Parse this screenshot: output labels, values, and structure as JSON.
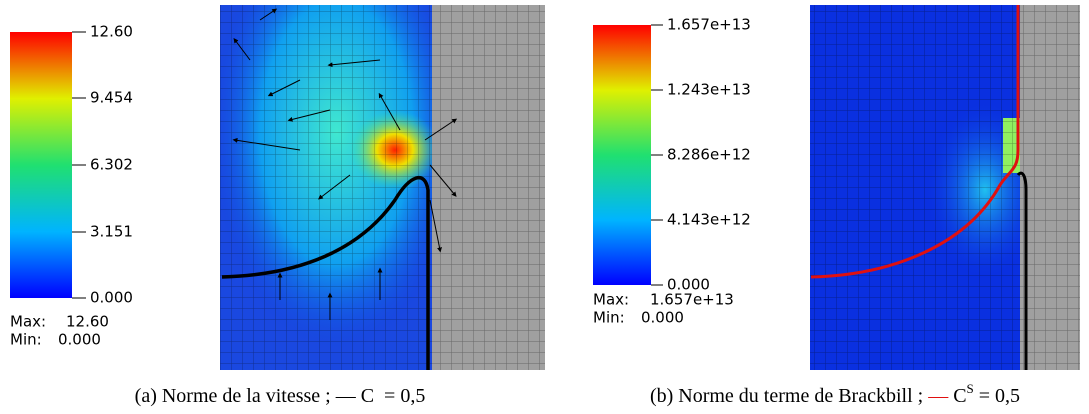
{
  "panels": [
    {
      "colorbar": {
        "ticks": [
          "12.60",
          "9.454",
          "6.302",
          "3.151",
          "0.000"
        ],
        "max_label": "Max:",
        "max": "12.60",
        "min_label": "Min:",
        "min": "0.000"
      },
      "caption": {
        "prefix": "(a) Norme de la vitesse ;",
        "symbol": "—",
        "variable": "C",
        "rest": "= 0,5"
      }
    },
    {
      "colorbar": {
        "ticks": [
          "1.657e+13",
          "1.243e+13",
          "8.286e+12",
          "4.143e+12",
          "0.000"
        ],
        "max_label": "Max:",
        "max": "1.657e+13",
        "min_label": "Min:",
        "min": "0.000"
      },
      "caption": {
        "prefix": "(b) Norme du terme de Brackbill ;",
        "symbol": "—",
        "variable": "C",
        "superscript": "S",
        "rest": "= 0,5"
      }
    }
  ]
}
